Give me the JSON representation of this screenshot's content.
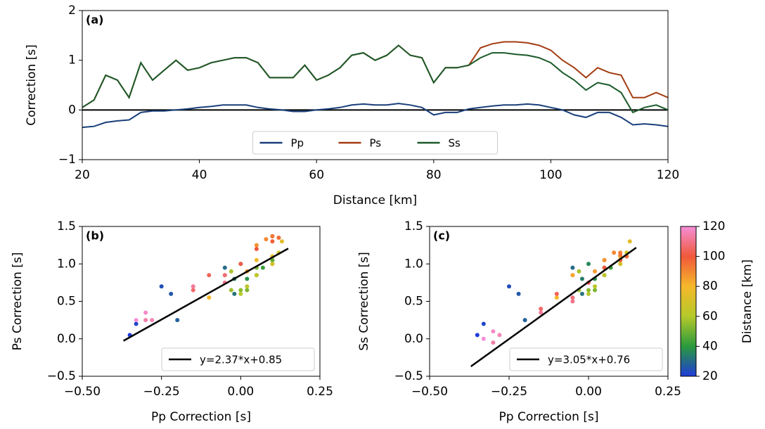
{
  "chart_data": [
    {
      "type": "line",
      "annotation": "(a)",
      "xlabel": "Distance [km]",
      "ylabel": "Correction [s]",
      "xlim": [
        20,
        120
      ],
      "ylim": [
        -1,
        2
      ],
      "xticks": [
        20,
        40,
        60,
        80,
        100,
        120
      ],
      "yticks": [
        {
          "value": -1,
          "label": "−1"
        },
        0,
        1,
        2
      ],
      "hline": 0,
      "legend": "lower center",
      "x": [
        20,
        22,
        24,
        26,
        28,
        30,
        32,
        34,
        36,
        38,
        40,
        42,
        44,
        46,
        48,
        50,
        52,
        54,
        56,
        58,
        60,
        62,
        64,
        66,
        68,
        70,
        72,
        74,
        76,
        78,
        80,
        82,
        84,
        86,
        88,
        90,
        92,
        94,
        96,
        98,
        100,
        102,
        104,
        106,
        108,
        110,
        112,
        114,
        116,
        118,
        120
      ],
      "series": [
        {
          "name": "Pp",
          "color": "#1a3f7a",
          "values": [
            -0.35,
            -0.33,
            -0.25,
            -0.22,
            -0.2,
            -0.05,
            -0.02,
            -0.02,
            0.0,
            0.02,
            0.05,
            0.07,
            0.1,
            0.1,
            0.1,
            0.05,
            0.02,
            0.0,
            -0.03,
            -0.03,
            0.0,
            0.02,
            0.05,
            0.1,
            0.12,
            0.1,
            0.1,
            0.13,
            0.1,
            0.05,
            -0.1,
            -0.05,
            -0.05,
            0.02,
            0.05,
            0.08,
            0.1,
            0.1,
            0.12,
            0.1,
            0.05,
            0.0,
            -0.1,
            -0.15,
            -0.05,
            -0.05,
            -0.15,
            -0.3,
            -0.28,
            -0.3,
            -0.33
          ]
        },
        {
          "name": "Ps",
          "color": "#a33d12",
          "values": [
            0.05,
            0.2,
            0.7,
            0.6,
            0.25,
            0.95,
            0.6,
            0.8,
            1.0,
            0.8,
            0.85,
            0.95,
            1.0,
            1.05,
            1.05,
            0.95,
            0.65,
            0.65,
            0.65,
            0.9,
            0.6,
            0.7,
            0.85,
            1.1,
            1.15,
            1.0,
            1.1,
            1.3,
            1.1,
            1.05,
            0.55,
            0.85,
            0.85,
            0.9,
            1.25,
            1.33,
            1.37,
            1.37,
            1.35,
            1.3,
            1.2,
            1.0,
            0.85,
            0.65,
            0.85,
            0.75,
            0.7,
            0.25,
            0.25,
            0.35,
            0.25
          ]
        },
        {
          "name": "Ss",
          "color": "#1b5a2a",
          "values": [
            0.05,
            0.2,
            0.7,
            0.6,
            0.25,
            0.95,
            0.6,
            0.8,
            1.0,
            0.8,
            0.85,
            0.95,
            1.0,
            1.05,
            1.05,
            0.95,
            0.65,
            0.65,
            0.65,
            0.9,
            0.6,
            0.7,
            0.85,
            1.1,
            1.15,
            1.0,
            1.1,
            1.3,
            1.1,
            1.05,
            0.55,
            0.85,
            0.85,
            0.9,
            1.05,
            1.15,
            1.15,
            1.12,
            1.1,
            1.05,
            0.95,
            0.75,
            0.6,
            0.4,
            0.55,
            0.5,
            0.35,
            -0.05,
            0.05,
            0.1,
            0.0
          ]
        }
      ]
    },
    {
      "type": "scatter",
      "annotation": "(b)",
      "xlabel": "Pp Correction [s]",
      "ylabel": "Ps Correction [s]",
      "xlim": [
        -0.5,
        0.25
      ],
      "ylim": [
        -0.5,
        1.5
      ],
      "xticks": [
        {
          "value": -0.5,
          "label": "−0.50"
        },
        {
          "value": -0.25,
          "label": "−0.25"
        },
        {
          "value": 0,
          "label": "0.00"
        },
        0.25
      ],
      "yticks": [
        {
          "value": -0.5,
          "label": "−0.5"
        },
        {
          "value": 0,
          "label": "0.0"
        },
        0.5,
        {
          "value": 1,
          "label": "1.0"
        },
        1.5
      ],
      "legend": "lower right",
      "x": [
        -0.35,
        -0.33,
        -0.25,
        -0.22,
        -0.2,
        -0.05,
        -0.02,
        -0.02,
        0.0,
        0.02,
        0.05,
        0.07,
        0.1,
        0.1,
        0.1,
        0.05,
        0.02,
        0.0,
        -0.03,
        -0.03,
        0.0,
        0.02,
        0.05,
        0.1,
        0.12,
        0.1,
        0.1,
        0.13,
        0.1,
        0.05,
        -0.1,
        -0.05,
        -0.05,
        0.02,
        0.05,
        0.08,
        0.1,
        0.1,
        0.12,
        0.1,
        0.05,
        0.0,
        -0.1,
        -0.15,
        -0.05,
        -0.05,
        -0.15,
        -0.3,
        -0.28,
        -0.3,
        -0.33
      ],
      "y": [
        0.05,
        0.2,
        0.7,
        0.6,
        0.25,
        0.95,
        0.6,
        0.8,
        1.0,
        0.8,
        0.85,
        0.95,
        1.0,
        1.05,
        1.05,
        0.95,
        0.65,
        0.65,
        0.65,
        0.9,
        0.6,
        0.7,
        0.85,
        1.1,
        1.15,
        1.0,
        1.1,
        1.3,
        1.1,
        1.05,
        0.55,
        0.85,
        0.85,
        0.9,
        1.25,
        1.33,
        1.37,
        1.37,
        1.35,
        1.3,
        1.2,
        1.0,
        0.85,
        0.65,
        0.85,
        0.75,
        0.7,
        0.25,
        0.25,
        0.35,
        0.25
      ],
      "c": [
        20,
        22,
        24,
        26,
        28,
        30,
        32,
        34,
        36,
        38,
        40,
        42,
        44,
        46,
        48,
        50,
        52,
        54,
        56,
        58,
        60,
        62,
        64,
        66,
        68,
        70,
        72,
        74,
        76,
        78,
        80,
        82,
        84,
        86,
        88,
        90,
        92,
        94,
        96,
        98,
        100,
        102,
        104,
        106,
        108,
        110,
        112,
        114,
        116,
        118,
        120
      ],
      "fit": {
        "label": "y=2.37*x+0.85",
        "color": "#000000",
        "x": [
          -0.37,
          0.15
        ],
        "y": [
          -0.027,
          1.2055
        ]
      }
    },
    {
      "type": "scatter",
      "annotation": "(c)",
      "xlabel": "Pp Correction [s]",
      "ylabel": "Ss Correction [s]",
      "xlim": [
        -0.5,
        0.25
      ],
      "ylim": [
        -0.5,
        1.5
      ],
      "xticks": [
        {
          "value": -0.5,
          "label": "−0.50"
        },
        {
          "value": -0.25,
          "label": "−0.25"
        },
        {
          "value": 0,
          "label": "0.00"
        },
        0.25
      ],
      "yticks": [
        {
          "value": -0.5,
          "label": "−0.5"
        },
        {
          "value": 0,
          "label": "0.0"
        },
        0.5,
        {
          "value": 1,
          "label": "1.0"
        },
        1.5
      ],
      "legend": "lower right",
      "x": [
        -0.35,
        -0.33,
        -0.25,
        -0.22,
        -0.2,
        -0.05,
        -0.02,
        -0.02,
        0.0,
        0.02,
        0.05,
        0.07,
        0.1,
        0.1,
        0.1,
        0.05,
        0.02,
        0.0,
        -0.03,
        -0.03,
        0.0,
        0.02,
        0.05,
        0.1,
        0.12,
        0.1,
        0.1,
        0.13,
        0.1,
        0.05,
        -0.1,
        -0.05,
        -0.05,
        0.02,
        0.05,
        0.08,
        0.1,
        0.1,
        0.12,
        0.1,
        0.05,
        0.0,
        -0.1,
        -0.15,
        -0.05,
        -0.05,
        -0.15,
        -0.3,
        -0.28,
        -0.3,
        -0.33
      ],
      "y": [
        0.05,
        0.2,
        0.7,
        0.6,
        0.25,
        0.95,
        0.6,
        0.8,
        1.0,
        0.8,
        0.85,
        0.95,
        1.0,
        1.05,
        1.05,
        0.95,
        0.65,
        0.65,
        0.65,
        0.9,
        0.6,
        0.7,
        0.85,
        1.1,
        1.15,
        1.0,
        1.1,
        1.3,
        1.1,
        1.05,
        0.55,
        0.85,
        0.85,
        0.9,
        1.05,
        1.15,
        1.15,
        1.12,
        1.1,
        1.05,
        0.95,
        0.75,
        0.6,
        0.4,
        0.55,
        0.5,
        0.35,
        -0.05,
        0.05,
        0.1,
        0.0
      ],
      "c": [
        20,
        22,
        24,
        26,
        28,
        30,
        32,
        34,
        36,
        38,
        40,
        42,
        44,
        46,
        48,
        50,
        52,
        54,
        56,
        58,
        60,
        62,
        64,
        66,
        68,
        70,
        72,
        74,
        76,
        78,
        80,
        82,
        84,
        86,
        88,
        90,
        92,
        94,
        96,
        98,
        100,
        102,
        104,
        106,
        108,
        110,
        112,
        114,
        116,
        118,
        120
      ],
      "fit": {
        "label": "y=3.05*x+0.76",
        "color": "#000000",
        "x": [
          -0.37,
          0.15
        ],
        "y": [
          -0.3685,
          1.2175
        ]
      },
      "colorbar": {
        "label": "Distance [km]",
        "lim": [
          20,
          120
        ],
        "ticks": [
          20,
          40,
          60,
          80,
          100,
          120
        ],
        "colormap": [
          "#1f3bd9",
          "#2a9a3c",
          "#b5c92a",
          "#f5b82a",
          "#f0583a",
          "#f58fd8"
        ]
      }
    }
  ]
}
